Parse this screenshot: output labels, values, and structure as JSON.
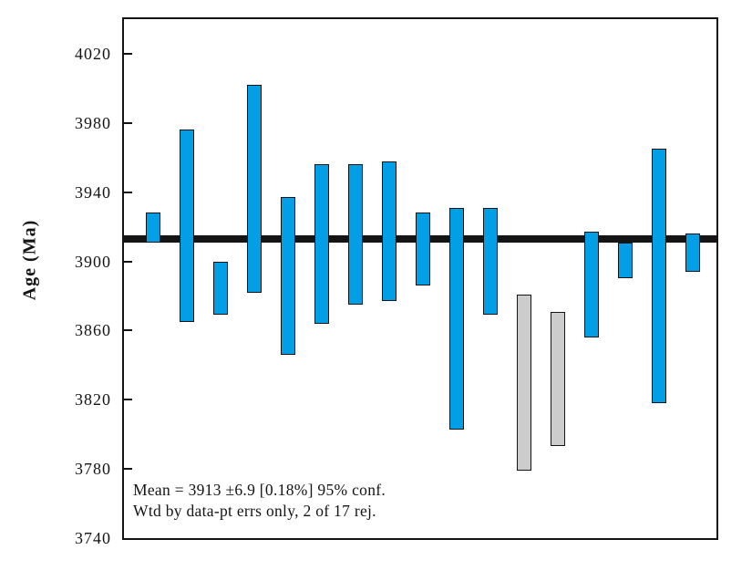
{
  "chart_data": {
    "type": "bar",
    "subtype": "weighted-mean-age-error-bar-plot",
    "title": "",
    "xlabel": "",
    "ylabel": "Age (Ma)",
    "ylim": [
      3740,
      4040
    ],
    "yticks": [
      4020,
      3980,
      3940,
      3900,
      3860,
      3820,
      3780,
      3740
    ],
    "ytick_interval": 40,
    "grid": false,
    "legend": "none",
    "mean_line": {
      "value": 3913,
      "color": "#141414"
    },
    "mean_text": "Mean = 3913 ±6.9 [0.18%] 95% conf.",
    "weighting_text": "Wtd by data-pt errs only, 2 of 17 rej.",
    "n_total": 17,
    "n_rejected": 2,
    "colors": {
      "accepted_fill": "#029FE6",
      "rejected_fill": "#CCCCCC",
      "bar_border": "#141414",
      "axis": "#141414"
    },
    "bars": [
      {
        "index": 1,
        "age_top": 3928,
        "age_bottom": 3911,
        "rejected": false
      },
      {
        "index": 2,
        "age_top": 3976,
        "age_bottom": 3865,
        "rejected": false
      },
      {
        "index": 3,
        "age_top": 3900,
        "age_bottom": 3869,
        "rejected": false
      },
      {
        "index": 4,
        "age_top": 4002,
        "age_bottom": 3882,
        "rejected": false
      },
      {
        "index": 5,
        "age_top": 3937,
        "age_bottom": 3846,
        "rejected": false
      },
      {
        "index": 6,
        "age_top": 3956,
        "age_bottom": 3864,
        "rejected": false
      },
      {
        "index": 7,
        "age_top": 3956,
        "age_bottom": 3875,
        "rejected": false
      },
      {
        "index": 8,
        "age_top": 3958,
        "age_bottom": 3877,
        "rejected": false
      },
      {
        "index": 9,
        "age_top": 3928,
        "age_bottom": 3886,
        "rejected": false
      },
      {
        "index": 10,
        "age_top": 3931,
        "age_bottom": 3803,
        "rejected": false
      },
      {
        "index": 11,
        "age_top": 3931,
        "age_bottom": 3869,
        "rejected": false
      },
      {
        "index": 12,
        "age_top": 3881,
        "age_bottom": 3779,
        "rejected": true
      },
      {
        "index": 13,
        "age_top": 3871,
        "age_bottom": 3793,
        "rejected": true
      },
      {
        "index": 14,
        "age_top": 3917,
        "age_bottom": 3856,
        "rejected": false
      },
      {
        "index": 15,
        "age_top": 3911,
        "age_bottom": 3890,
        "rejected": false
      },
      {
        "index": 16,
        "age_top": 3965,
        "age_bottom": 3818,
        "rejected": false
      },
      {
        "index": 17,
        "age_top": 3916,
        "age_bottom": 3894,
        "rejected": false
      }
    ]
  }
}
